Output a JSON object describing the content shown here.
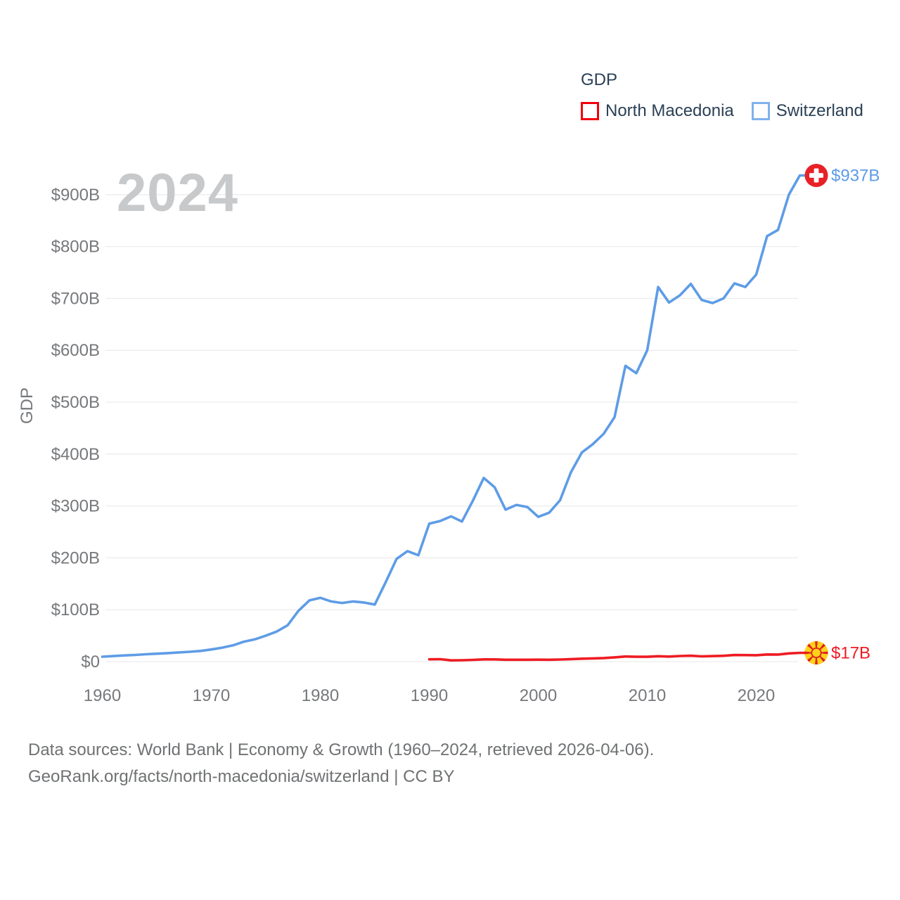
{
  "watermark": "2024",
  "legend": {
    "title": "GDP",
    "items": [
      {
        "label": "North Macedonia",
        "swatch_color": "#f2000c"
      },
      {
        "label": "Switzerland",
        "swatch_color": "#7fb2ec"
      }
    ]
  },
  "y_axis": {
    "title": "GDP"
  },
  "footer": {
    "line1": "Data sources: World Bank | Economy & Growth (1960–2024, retrieved 2026-04-06).",
    "line2": "GeoRank.org/facts/north-macedonia/switzerland | CC BY"
  },
  "flag_colors": {
    "switzerland": {
      "bg": "#e82127",
      "cross": "#ffffff"
    },
    "north-macedonia": {
      "bg": "#dd231c",
      "sun": "#ffd21a"
    }
  },
  "chart_data": {
    "type": "line",
    "title": "GDP",
    "x_range": [
      1960,
      2024
    ],
    "ylim": [
      0,
      950
    ],
    "grid": "horizontal",
    "legend_position": "top-right",
    "yticks": [
      {
        "v": 0,
        "label": "$0"
      },
      {
        "v": 100,
        "label": "$100B"
      },
      {
        "v": 200,
        "label": "$200B"
      },
      {
        "v": 300,
        "label": "$300B"
      },
      {
        "v": 400,
        "label": "$400B"
      },
      {
        "v": 500,
        "label": "$500B"
      },
      {
        "v": 600,
        "label": "$600B"
      },
      {
        "v": 700,
        "label": "$700B"
      },
      {
        "v": 800,
        "label": "$800B"
      },
      {
        "v": 900,
        "label": "$900B"
      }
    ],
    "xticks": [
      {
        "v": 1960,
        "label": "1960"
      },
      {
        "v": 1970,
        "label": "1970"
      },
      {
        "v": 1980,
        "label": "1980"
      },
      {
        "v": 1990,
        "label": "1990"
      },
      {
        "v": 2000,
        "label": "2000"
      },
      {
        "v": 2010,
        "label": "2010"
      },
      {
        "v": 2020,
        "label": "2020"
      }
    ],
    "series": [
      {
        "name": "Switzerland",
        "color": "#5e9ce6",
        "flag": "switzerland",
        "start_year": 1960,
        "end_label": "$937B",
        "values": [
          9.5,
          10.7,
          11.9,
          12.9,
          14.2,
          15.3,
          16.4,
          17.7,
          19,
          20.6,
          23.5,
          27,
          31.5,
          38.5,
          43,
          50,
          58,
          70,
          98,
          118,
          123,
          116,
          113,
          116,
          114,
          110,
          153,
          198,
          213,
          205,
          266,
          271,
          280,
          270,
          310,
          354,
          336,
          293,
          302,
          298,
          279,
          287,
          311,
          365,
          403,
          419,
          439,
          471,
          570,
          556,
          600,
          722,
          692,
          706,
          728,
          697,
          691,
          700,
          729,
          722,
          746,
          820,
          832,
          900,
          937
        ]
      },
      {
        "name": "North Macedonia",
        "color": "#ee1c23",
        "flag": "north-macedonia",
        "start_year": 1990,
        "end_label": "$17B",
        "values": [
          4.5,
          4.7,
          2.5,
          2.7,
          3.4,
          4.4,
          4.4,
          3.7,
          3.6,
          3.7,
          3.8,
          3.7,
          4.0,
          4.9,
          5.7,
          6.3,
          6.9,
          8.3,
          9.9,
          9.4,
          9.4,
          10.5,
          9.7,
          10.8,
          11.4,
          10.1,
          10.7,
          11.3,
          12.7,
          12.6,
          12.3,
          13.8,
          13.7,
          15.8,
          17
        ]
      }
    ]
  }
}
